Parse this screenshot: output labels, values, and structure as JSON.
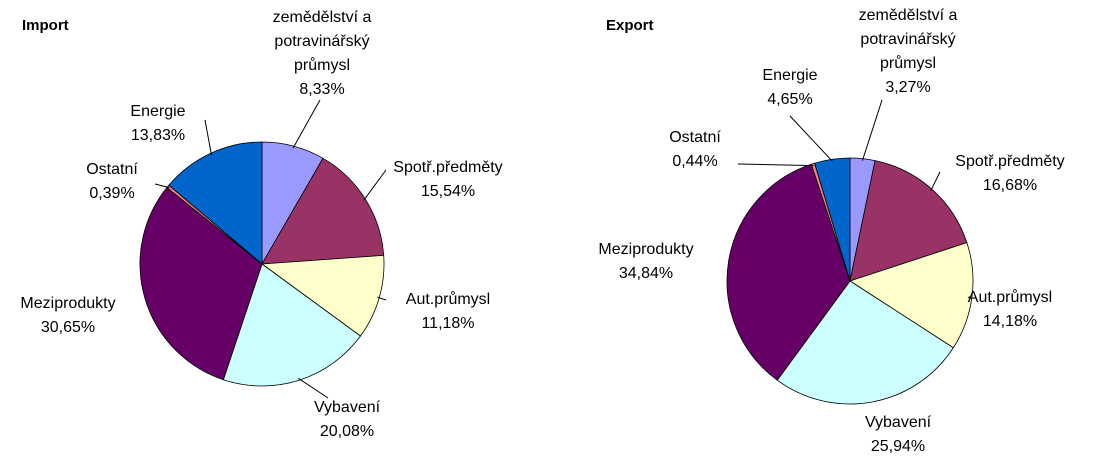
{
  "chart_data": [
    {
      "type": "pie",
      "title": "Import",
      "categories": [
        "zemědělství a potravinářský průmysl",
        "Spotř.předměty",
        "Aut.průmysl",
        "Vybavení",
        "Meziprodukty",
        "Ostatní",
        "Energie"
      ],
      "values": [
        8.33,
        15.54,
        11.18,
        20.08,
        30.65,
        0.39,
        13.83
      ],
      "value_labels": [
        "8,33%",
        "15,54%",
        "11,18%",
        "20,08%",
        "30,65%",
        "0,39%",
        "13,83%"
      ],
      "colors": [
        "#9999ff",
        "#993366",
        "#ffffcc",
        "#ccffff",
        "#660066",
        "#ff8080",
        "#0066cc"
      ]
    },
    {
      "type": "pie",
      "title": "Export",
      "categories": [
        "zemědělství a potravinářský průmysl",
        "Spotř.předměty",
        "Aut.průmysl",
        "Vybavení",
        "Meziprodukty",
        "Ostatní",
        "Energie"
      ],
      "values": [
        3.27,
        16.68,
        14.18,
        25.94,
        34.84,
        0.44,
        4.65
      ],
      "value_labels": [
        "3,27%",
        "16,68%",
        "14,18%",
        "25,94%",
        "34,84%",
        "0,44%",
        "4,65%"
      ],
      "colors": [
        "#9999ff",
        "#993366",
        "#ffffcc",
        "#ccffff",
        "#660066",
        "#ff8080",
        "#0066cc"
      ]
    }
  ]
}
